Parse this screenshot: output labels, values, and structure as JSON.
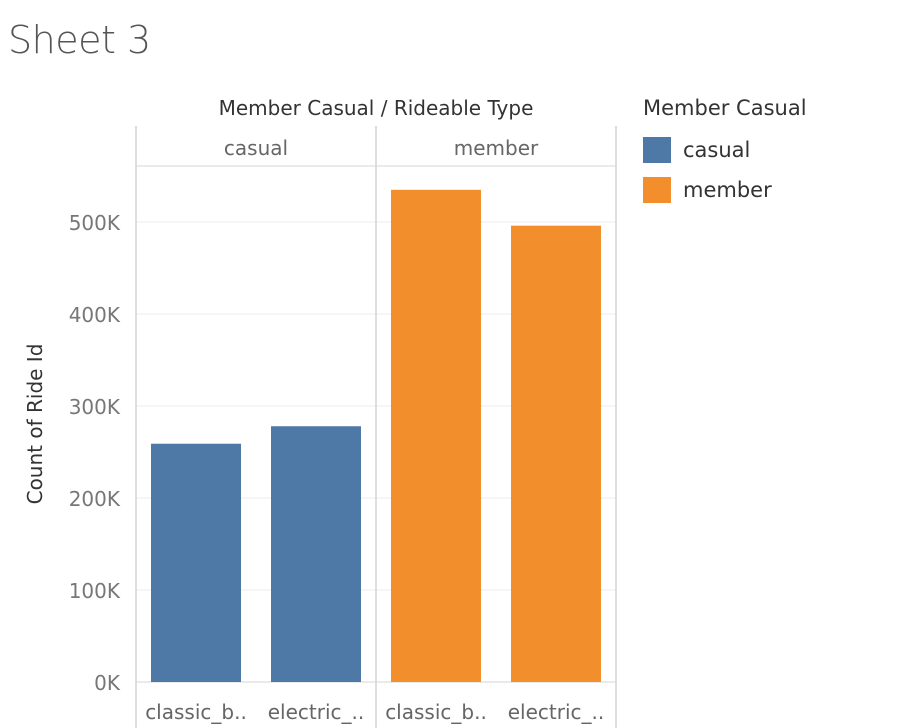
{
  "sheet": {
    "title": "Sheet 3"
  },
  "chart_data": {
    "type": "bar",
    "column_header": "Member Casual  /  Rideable Type",
    "ylabel": "Count of Ride Id",
    "ylim": [
      0,
      560000
    ],
    "yticks": [
      {
        "value": 0,
        "label": "0K"
      },
      {
        "value": 100000,
        "label": "100K"
      },
      {
        "value": 200000,
        "label": "200K"
      },
      {
        "value": 300000,
        "label": "300K"
      },
      {
        "value": 400000,
        "label": "400K"
      },
      {
        "value": 500000,
        "label": "500K"
      }
    ],
    "grid": true,
    "panes": [
      {
        "name": "casual",
        "color": "#4e79a7",
        "categories": [
          "classic_b..",
          "electric_.."
        ],
        "values": [
          259000,
          278000
        ]
      },
      {
        "name": "member",
        "color": "#f28e2b",
        "categories": [
          "classic_b..",
          "electric_.."
        ],
        "values": [
          535000,
          496000
        ]
      }
    ],
    "legend": {
      "title": "Member Casual",
      "placement": "right",
      "items": [
        {
          "label": "casual",
          "color": "#4e79a7"
        },
        {
          "label": "member",
          "color": "#f28e2b"
        }
      ]
    }
  }
}
